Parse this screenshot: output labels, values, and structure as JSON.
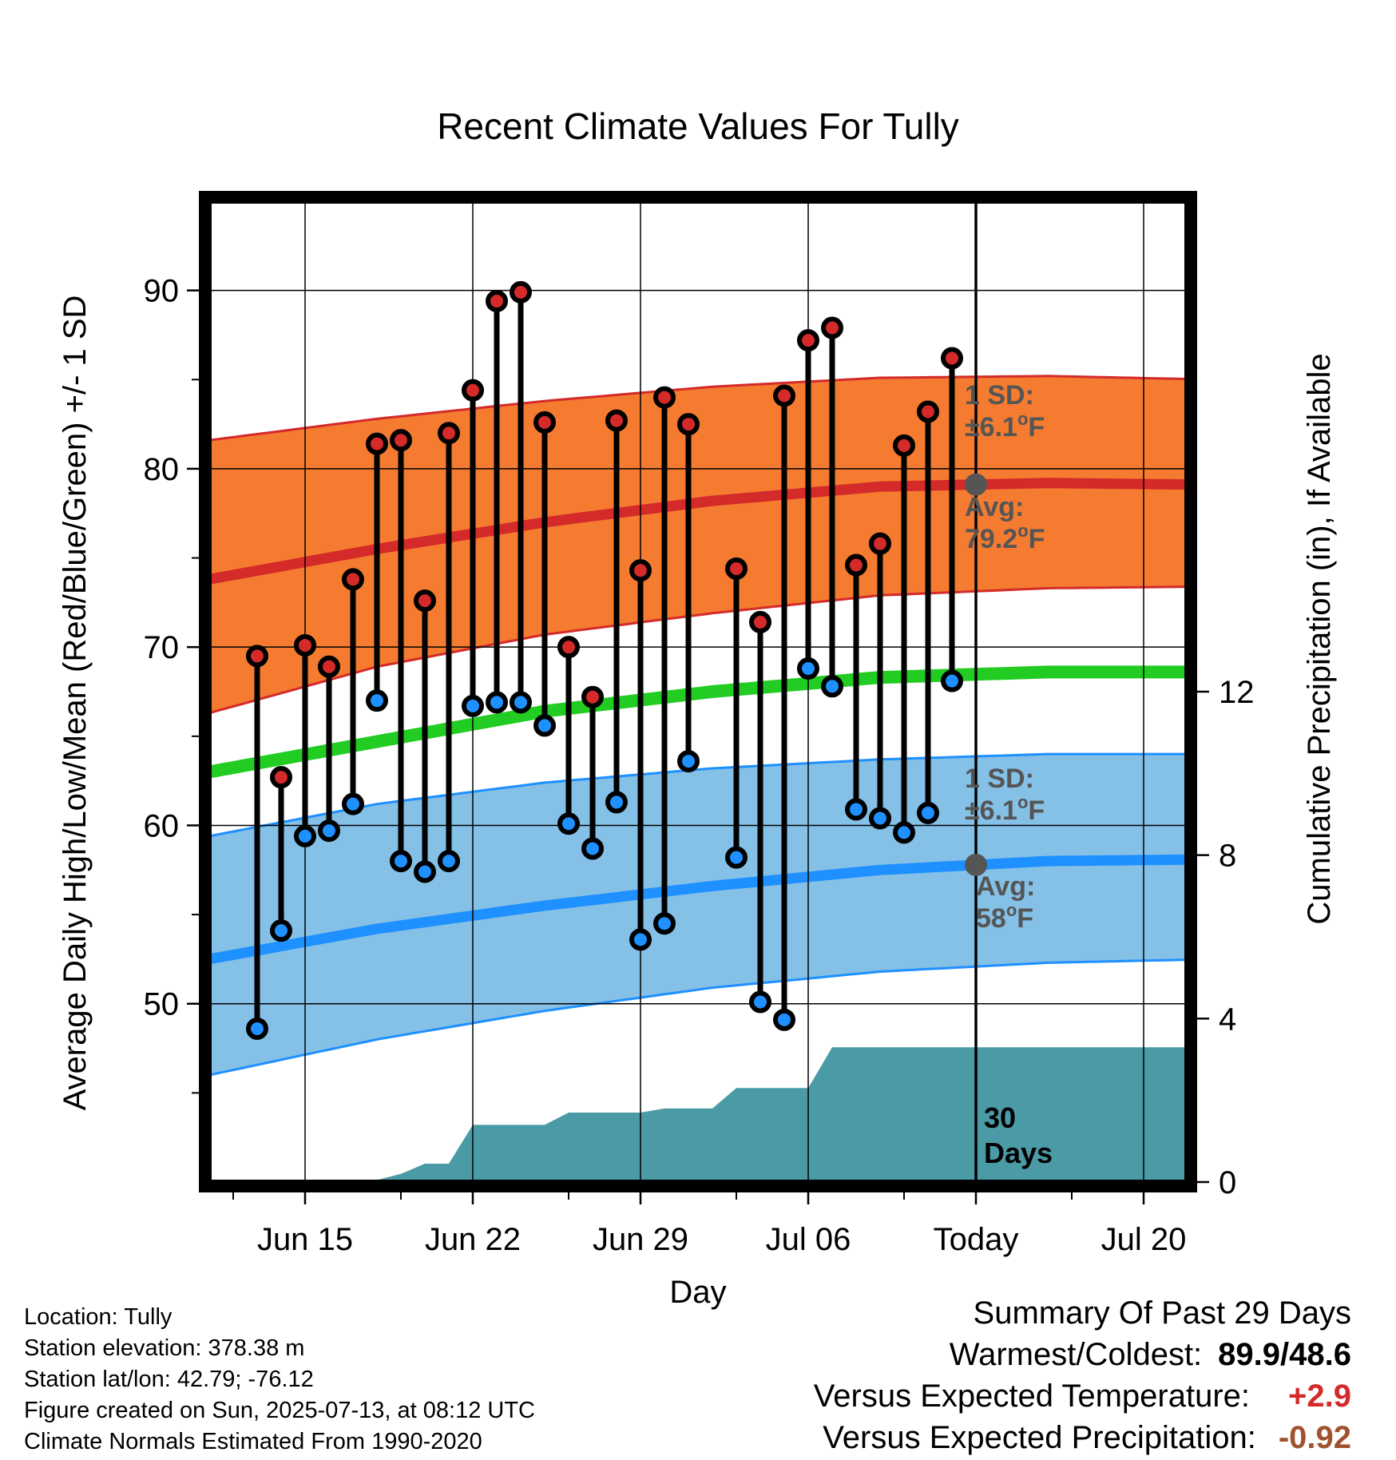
{
  "chart_data": {
    "type": "line",
    "title": "Recent Climate Values For Tully",
    "xlabel": "Day",
    "ylabel": "Average Daily High/Low/Mean (Red/Blue/Green) +/- 1 SD",
    "ylabel_right": "Cumulative Precipitation (in), If Available",
    "ylim": [
      40,
      95
    ],
    "ylim_right": [
      0,
      24
    ],
    "yticks": [
      50,
      60,
      70,
      80,
      90
    ],
    "yticks_right": [
      0,
      4,
      8,
      12
    ],
    "x_range": [
      "2025-06-11",
      "2025-07-23"
    ],
    "x_tick_labels": [
      {
        "date": "2025-06-15",
        "label": "Jun 15"
      },
      {
        "date": "2025-06-22",
        "label": "Jun 22"
      },
      {
        "date": "2025-06-29",
        "label": "Jun 29"
      },
      {
        "date": "2025-07-06",
        "label": "Jul 06"
      },
      {
        "date": "2025-07-13",
        "label": "Today"
      },
      {
        "date": "2025-07-20",
        "label": "Jul 20"
      }
    ],
    "today": "2025-07-13",
    "days": [
      "2025-06-13",
      "2025-06-14",
      "2025-06-15",
      "2025-06-16",
      "2025-06-17",
      "2025-06-18",
      "2025-06-19",
      "2025-06-20",
      "2025-06-21",
      "2025-06-22",
      "2025-06-23",
      "2025-06-24",
      "2025-06-25",
      "2025-06-26",
      "2025-06-27",
      "2025-06-28",
      "2025-06-29",
      "2025-06-30",
      "2025-07-01",
      "2025-07-02",
      "2025-07-03",
      "2025-07-04",
      "2025-07-05",
      "2025-07-06",
      "2025-07-07",
      "2025-07-08",
      "2025-07-09",
      "2025-07-10",
      "2025-07-11",
      "2025-07-12"
    ],
    "highs": [
      69.5,
      62.7,
      70.1,
      68.9,
      73.8,
      81.4,
      81.6,
      72.6,
      82.0,
      84.4,
      89.4,
      89.9,
      82.6,
      70.0,
      67.2,
      82.7,
      74.3,
      84.0,
      82.5,
      null,
      74.4,
      71.4,
      84.1,
      87.2,
      87.9,
      74.6,
      75.8,
      81.3,
      83.2,
      86.2
    ],
    "lows": [
      48.6,
      54.1,
      59.4,
      59.7,
      61.2,
      67.0,
      58.0,
      57.4,
      58.0,
      66.7,
      66.9,
      66.9,
      65.6,
      60.1,
      58.7,
      61.3,
      53.6,
      54.5,
      63.6,
      null,
      58.2,
      50.1,
      49.1,
      68.8,
      67.8,
      60.9,
      60.4,
      59.6,
      60.7,
      68.1
    ],
    "normal_dates": [
      "2025-06-11",
      "2025-06-18",
      "2025-06-25",
      "2025-07-02",
      "2025-07-09",
      "2025-07-16",
      "2025-07-23"
    ],
    "normal_high": [
      73.8,
      75.5,
      77.0,
      78.2,
      79.0,
      79.2,
      79.1
    ],
    "normal_high_sd_upper": [
      81.6,
      82.8,
      83.8,
      84.6,
      85.1,
      85.2,
      85.0
    ],
    "normal_high_sd_lower": [
      66.3,
      68.9,
      70.7,
      71.9,
      72.9,
      73.3,
      73.4
    ],
    "normal_mean": [
      63.0,
      64.7,
      66.4,
      67.5,
      68.3,
      68.6,
      68.6
    ],
    "normal_low": [
      52.5,
      54.2,
      55.5,
      56.6,
      57.5,
      58.0,
      58.1
    ],
    "normal_low_sd_upper": [
      59.4,
      61.2,
      62.4,
      63.2,
      63.7,
      64.0,
      64.0
    ],
    "normal_low_sd_lower": [
      46.0,
      48.0,
      49.6,
      50.9,
      51.8,
      52.3,
      52.5
    ],
    "precip_cumulative": {
      "dates": [
        "2025-06-13",
        "2025-06-14",
        "2025-06-15",
        "2025-06-16",
        "2025-06-17",
        "2025-06-18",
        "2025-06-19",
        "2025-06-20",
        "2025-06-21",
        "2025-06-22",
        "2025-06-23",
        "2025-06-24",
        "2025-06-25",
        "2025-06-26",
        "2025-06-27",
        "2025-06-28",
        "2025-06-29",
        "2025-06-30",
        "2025-07-01",
        "2025-07-02",
        "2025-07-03",
        "2025-07-04",
        "2025-07-05",
        "2025-07-06",
        "2025-07-07",
        "2025-07-08",
        "2025-07-09",
        "2025-07-10",
        "2025-07-11",
        "2025-07-12",
        "2025-07-13",
        "2025-07-23"
      ],
      "values": [
        0.0,
        0.05,
        0.05,
        0.05,
        0.05,
        0.05,
        0.2,
        0.45,
        0.45,
        1.4,
        1.4,
        1.4,
        1.4,
        1.7,
        1.7,
        1.7,
        1.7,
        1.8,
        1.8,
        1.8,
        2.3,
        2.3,
        2.3,
        2.3,
        3.3,
        3.3,
        3.3,
        3.3,
        3.3,
        3.3,
        3.3,
        3.3
      ]
    },
    "annotations": {
      "high_sd": [
        "1 SD:",
        "±6.1°F"
      ],
      "high_avg": [
        "Avg:",
        "79.2°F"
      ],
      "low_sd": [
        "1 SD:",
        "±6.1°F"
      ],
      "low_avg": [
        "Avg:",
        "58°F"
      ],
      "period": [
        "30",
        "Days"
      ]
    },
    "colors": {
      "high": "#d42a2a",
      "high_band": "#f47b30",
      "mean": "#22cc22",
      "low": "#1e90ff",
      "low_band": "#85c0e6",
      "precip": "#4a9ba6",
      "today_dot": "#555555",
      "annotation": "#555555"
    }
  },
  "info": {
    "location": "Location: Tully",
    "elevation": "Station elevation: 378.38 m",
    "latlon": "Station lat/lon: 42.79; -76.12",
    "created": "Figure created on Sun, 2025-07-13, at 08:12 UTC",
    "normals": "Climate Normals Estimated From 1990-2020"
  },
  "summary": {
    "title": "Summary Of Past 29 Days",
    "warmest_label": "Warmest/Coldest:",
    "warmest_value": "89.9/48.6",
    "temp_label": "Versus Expected Temperature:",
    "temp_value": "+2.9",
    "temp_color": "#d42a2a",
    "precip_label": "Versus Expected Precipitation:",
    "precip_value": "-0.92",
    "precip_color": "#a0522d"
  }
}
